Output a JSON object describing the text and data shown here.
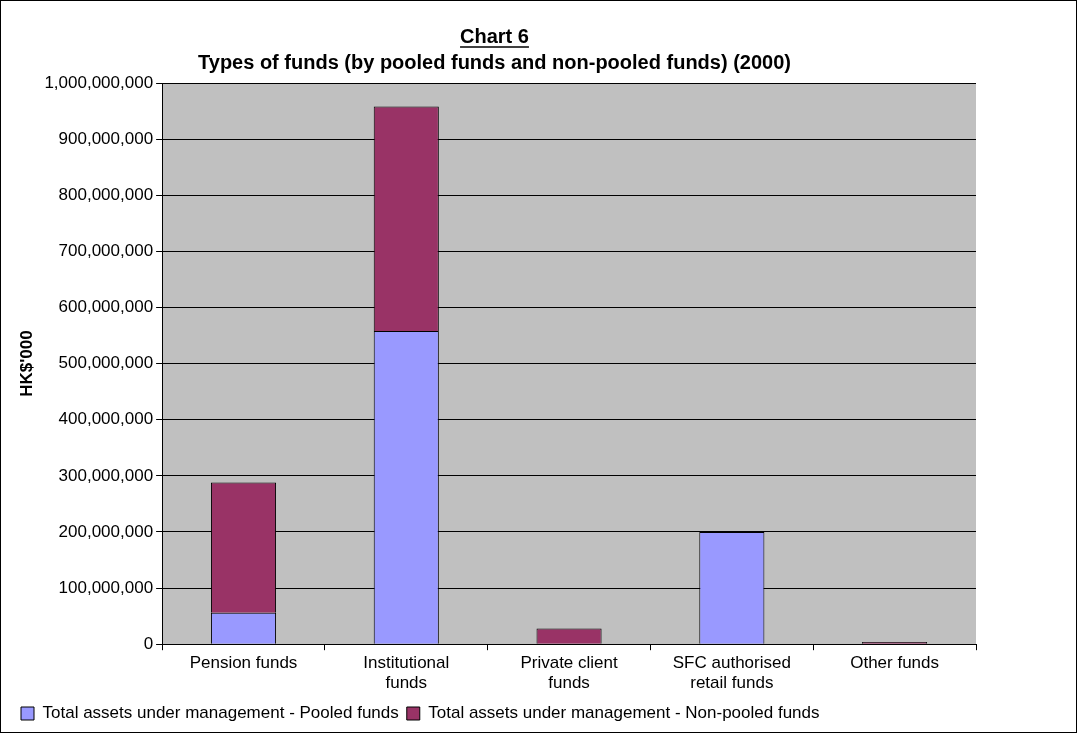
{
  "chart_data": {
    "type": "bar",
    "title": "Chart 6",
    "subtitle": "Types of funds (by pooled funds and non-pooled funds) (2000)",
    "ylabel": "HK$'000",
    "categories": [
      "Pension funds",
      "Institutional funds",
      "Private client funds",
      "SFC authorised retail funds",
      "Other funds"
    ],
    "series": [
      {
        "name": "Total assets under management - Pooled funds",
        "color": "#9999ff",
        "values": [
          56000000,
          558000000,
          null,
          200000000,
          null
        ]
      },
      {
        "name": "Total assets under management - Non-pooled funds",
        "color": "#993366",
        "values": [
          232000000,
          400000000,
          28000000,
          0,
          4000000
        ]
      }
    ],
    "stacked": true,
    "ylim": [
      0,
      1000000000
    ],
    "yticks": [
      0,
      {
        "value": 100000000,
        "label": "100,000,000"
      },
      {
        "value": 200000000,
        "label": "200,000,000"
      },
      {
        "value": 300000000,
        "label": "300,000,000"
      },
      {
        "value": 400000000,
        "label": "400,000,000"
      },
      {
        "value": 500000000,
        "label": "500,000,000"
      },
      {
        "value": 600000000,
        "label": "600,000,000"
      },
      {
        "value": 700000000,
        "label": "700,000,000"
      },
      {
        "value": 800000000,
        "label": "800,000,000"
      },
      {
        "value": 900000000,
        "label": "900,000,000"
      },
      {
        "value": 1000000000,
        "label": "1,000,000,000"
      }
    ],
    "grid": "y",
    "legend": "bottom"
  }
}
